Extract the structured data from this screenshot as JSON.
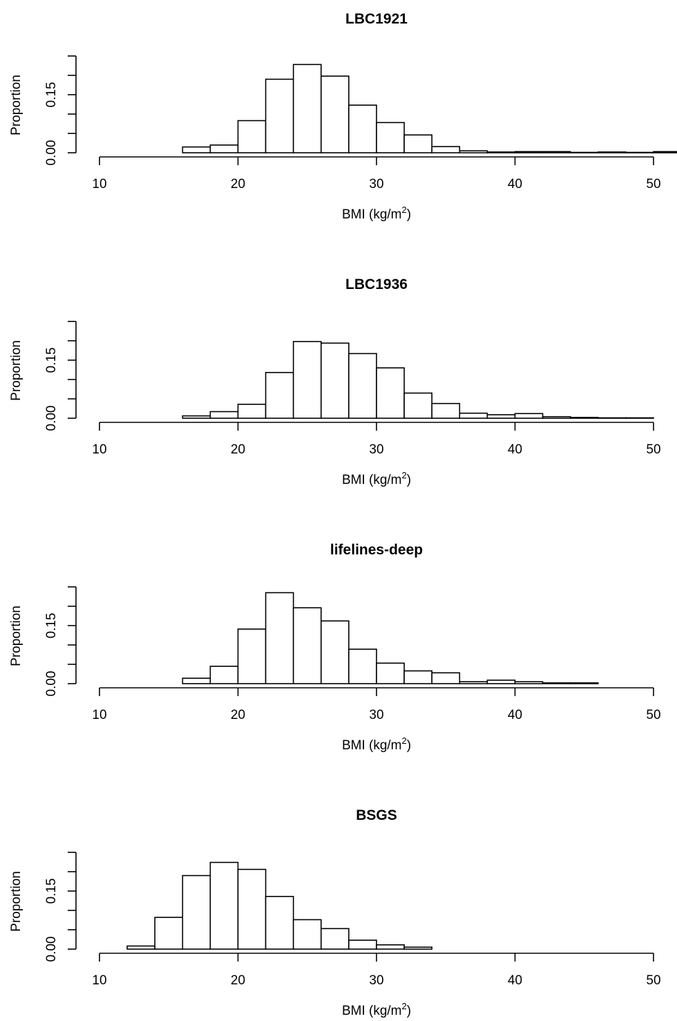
{
  "chart_data": [
    {
      "type": "bar",
      "title": "LBC1921",
      "xlabel": "BMI",
      "xlabel_unit_base": "(kg/m",
      "xlabel_unit_sup": "2",
      "xlabel_unit_end": ")",
      "ylabel": "Proportion",
      "xlim": [
        10,
        50
      ],
      "ylim": [
        0,
        0.25
      ],
      "x_ticks": [
        10,
        20,
        30,
        40,
        50
      ],
      "y_tick_labels": [
        "0.00",
        "0.15"
      ],
      "y_tick_values": [
        0,
        0.05,
        0.1,
        0.15,
        0.2,
        0.25
      ],
      "bin_width": 2,
      "bin_starts": [
        16,
        18,
        20,
        22,
        24,
        26,
        28,
        30,
        32,
        34,
        36,
        38,
        40,
        42,
        44,
        46,
        48,
        50
      ],
      "values": [
        0.015,
        0.02,
        0.083,
        0.19,
        0.228,
        0.198,
        0.123,
        0.078,
        0.046,
        0.016,
        0.005,
        0.002,
        0.003,
        0.003,
        0.001,
        0.002,
        0.001,
        0.003
      ]
    },
    {
      "type": "bar",
      "title": "LBC1936",
      "xlabel": "BMI",
      "xlabel_unit_base": "(kg/m",
      "xlabel_unit_sup": "2",
      "xlabel_unit_end": ")",
      "ylabel": "Proportion",
      "xlim": [
        10,
        50
      ],
      "ylim": [
        0,
        0.25
      ],
      "x_ticks": [
        10,
        20,
        30,
        40,
        50
      ],
      "y_tick_labels": [
        "0.00",
        "0.15"
      ],
      "y_tick_values": [
        0,
        0.05,
        0.1,
        0.15,
        0.2,
        0.25
      ],
      "bin_width": 2,
      "bin_starts": [
        16,
        18,
        20,
        22,
        24,
        26,
        28,
        30,
        32,
        34,
        36,
        38,
        40,
        42,
        44,
        46,
        48
      ],
      "values": [
        0.006,
        0.017,
        0.036,
        0.118,
        0.198,
        0.194,
        0.167,
        0.13,
        0.065,
        0.038,
        0.013,
        0.009,
        0.012,
        0.004,
        0.002,
        0.001,
        0.001
      ]
    },
    {
      "type": "bar",
      "title": "lifelines-deep",
      "xlabel": "BMI",
      "xlabel_unit_base": "(kg/m",
      "xlabel_unit_sup": "2",
      "xlabel_unit_end": ")",
      "ylabel": "Proportion",
      "xlim": [
        10,
        50
      ],
      "ylim": [
        0,
        0.25
      ],
      "x_ticks": [
        10,
        20,
        30,
        40,
        50
      ],
      "y_tick_labels": [
        "0.00",
        "0.15"
      ],
      "y_tick_values": [
        0,
        0.05,
        0.1,
        0.15,
        0.2,
        0.25
      ],
      "bin_width": 2,
      "bin_starts": [
        16,
        18,
        20,
        22,
        24,
        26,
        28,
        30,
        32,
        34,
        36,
        38,
        40,
        42,
        44
      ],
      "values": [
        0.014,
        0.045,
        0.141,
        0.235,
        0.196,
        0.162,
        0.089,
        0.053,
        0.033,
        0.028,
        0.005,
        0.009,
        0.005,
        0.002,
        0.002
      ]
    },
    {
      "type": "bar",
      "title": "BSGS",
      "xlabel": "BMI",
      "xlabel_unit_base": "(kg/m",
      "xlabel_unit_sup": "2",
      "xlabel_unit_end": ")",
      "ylabel": "Proportion",
      "xlim": [
        10,
        50
      ],
      "ylim": [
        0,
        0.25
      ],
      "x_ticks": [
        10,
        20,
        30,
        40,
        50
      ],
      "y_tick_labels": [
        "0.00",
        "0.15"
      ],
      "y_tick_values": [
        0,
        0.05,
        0.1,
        0.15,
        0.2,
        0.25
      ],
      "bin_width": 2,
      "bin_starts": [
        12,
        14,
        16,
        18,
        20,
        22,
        24,
        26,
        28,
        30,
        32
      ],
      "values": [
        0.008,
        0.082,
        0.19,
        0.224,
        0.206,
        0.136,
        0.076,
        0.053,
        0.023,
        0.011,
        0.005
      ]
    }
  ]
}
